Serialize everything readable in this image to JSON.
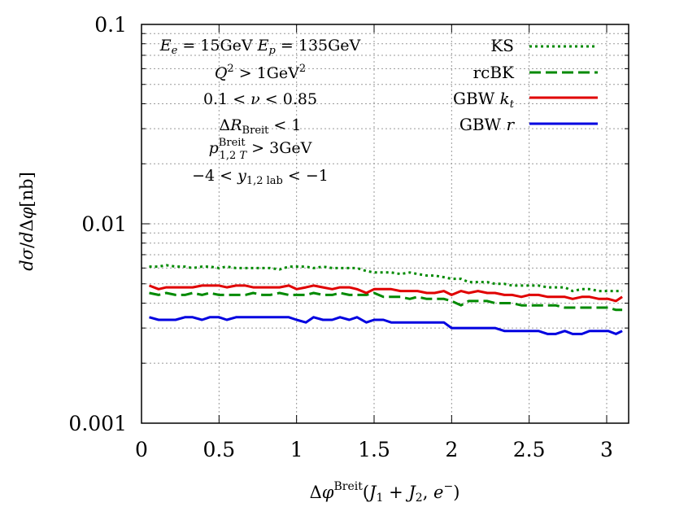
{
  "chart_data": {
    "type": "line",
    "xlabel": "Δφ^Breit(J1 + J2, e−)",
    "ylabel": "dσ/dΔφ[nb]",
    "xlim": [
      0,
      3.14159
    ],
    "ylim": [
      0.001,
      0.1
    ],
    "y_scale": "log",
    "x_ticks": [
      0,
      0.5,
      1,
      1.5,
      2,
      2.5,
      3
    ],
    "x_tick_labels": [
      "0",
      "0.5",
      "1",
      "1.5",
      "2",
      "2.5",
      "3"
    ],
    "y_ticks": [
      0.001,
      0.01,
      0.1
    ],
    "y_tick_labels": [
      "0.001",
      "0.01",
      "0.1"
    ],
    "grid": true,
    "legend_position": "top-right",
    "annotations": [
      "Ee = 15GeV Ep = 135GeV",
      "Q² > 1GeV²",
      "0.1 < ν < 0.85",
      "ΔRBreit < 1",
      "p1,2 T Breit > 3GeV",
      "−4 < y1,2 lab < −1"
    ],
    "x": [
      0.05,
      0.11,
      0.16,
      0.22,
      0.28,
      0.33,
      0.39,
      0.44,
      0.5,
      0.55,
      0.61,
      0.67,
      0.72,
      0.78,
      0.83,
      0.89,
      0.95,
      1.0,
      1.06,
      1.11,
      1.17,
      1.23,
      1.28,
      1.34,
      1.39,
      1.45,
      1.5,
      1.56,
      1.61,
      1.67,
      1.73,
      1.78,
      1.84,
      1.89,
      1.95,
      2.0,
      2.06,
      2.11,
      2.17,
      2.23,
      2.28,
      2.34,
      2.39,
      2.45,
      2.5,
      2.56,
      2.62,
      2.67,
      2.73,
      2.78,
      2.84,
      2.89,
      2.95,
      3.01,
      3.06,
      3.1
    ],
    "series": [
      {
        "name": "KS",
        "color": "#008a00",
        "dash": "dotted",
        "values": [
          0.0061,
          0.0061,
          0.0062,
          0.0061,
          0.0061,
          0.006,
          0.0061,
          0.0061,
          0.006,
          0.0061,
          0.006,
          0.006,
          0.006,
          0.006,
          0.006,
          0.0059,
          0.0061,
          0.0061,
          0.0061,
          0.006,
          0.0061,
          0.006,
          0.006,
          0.006,
          0.006,
          0.0058,
          0.0057,
          0.0057,
          0.0057,
          0.0056,
          0.0057,
          0.0056,
          0.0055,
          0.0055,
          0.0054,
          0.0053,
          0.0053,
          0.0051,
          0.0051,
          0.0051,
          0.005,
          0.005,
          0.0049,
          0.0049,
          0.0049,
          0.0049,
          0.0048,
          0.0048,
          0.0048,
          0.0046,
          0.0047,
          0.0047,
          0.0046,
          0.0046,
          0.0046,
          0.0046
        ]
      },
      {
        "name": "rcBK",
        "color": "#008a00",
        "dash": "dashed",
        "values": [
          0.0045,
          0.0044,
          0.0045,
          0.0044,
          0.0044,
          0.0045,
          0.0044,
          0.0045,
          0.0044,
          0.0044,
          0.0044,
          0.0044,
          0.0045,
          0.0044,
          0.0044,
          0.0045,
          0.0044,
          0.0044,
          0.0044,
          0.0045,
          0.0044,
          0.0044,
          0.0045,
          0.0044,
          0.0044,
          0.0044,
          0.0045,
          0.0043,
          0.0043,
          0.0043,
          0.0042,
          0.0043,
          0.0042,
          0.0042,
          0.0042,
          0.0041,
          0.0039,
          0.0041,
          0.0041,
          0.0041,
          0.004,
          0.004,
          0.004,
          0.0039,
          0.0039,
          0.0039,
          0.0039,
          0.0039,
          0.0038,
          0.0038,
          0.0038,
          0.0038,
          0.0038,
          0.0038,
          0.0037,
          0.0037
        ]
      },
      {
        "name": "GBW k_t",
        "color": "#e00000",
        "dash": "solid",
        "values": [
          0.0049,
          0.0047,
          0.0048,
          0.0048,
          0.0048,
          0.0048,
          0.0049,
          0.0049,
          0.0049,
          0.0048,
          0.0049,
          0.0049,
          0.0048,
          0.0048,
          0.0048,
          0.0048,
          0.0049,
          0.0047,
          0.0048,
          0.0049,
          0.0048,
          0.0047,
          0.0048,
          0.0048,
          0.0047,
          0.0045,
          0.0047,
          0.0047,
          0.0047,
          0.0046,
          0.0046,
          0.0046,
          0.0045,
          0.0045,
          0.0046,
          0.0044,
          0.0046,
          0.0045,
          0.0046,
          0.0045,
          0.0045,
          0.0044,
          0.0044,
          0.0043,
          0.0044,
          0.0044,
          0.0043,
          0.0043,
          0.0043,
          0.0042,
          0.0043,
          0.0043,
          0.0042,
          0.0042,
          0.0041,
          0.0043
        ]
      },
      {
        "name": "GBW r",
        "color": "#0000e0",
        "dash": "solid",
        "values": [
          0.0034,
          0.0033,
          0.0033,
          0.0033,
          0.0034,
          0.0034,
          0.0033,
          0.0034,
          0.0034,
          0.0033,
          0.0034,
          0.0034,
          0.0034,
          0.0034,
          0.0034,
          0.0034,
          0.0034,
          0.0033,
          0.0032,
          0.0034,
          0.0033,
          0.0033,
          0.0034,
          0.0033,
          0.0034,
          0.0032,
          0.0033,
          0.0033,
          0.0032,
          0.0032,
          0.0032,
          0.0032,
          0.0032,
          0.0032,
          0.0032,
          0.003,
          0.003,
          0.003,
          0.003,
          0.003,
          0.003,
          0.0029,
          0.0029,
          0.0029,
          0.0029,
          0.0029,
          0.0028,
          0.0028,
          0.0029,
          0.0028,
          0.0028,
          0.0029,
          0.0029,
          0.0029,
          0.0028,
          0.0029
        ]
      }
    ]
  }
}
